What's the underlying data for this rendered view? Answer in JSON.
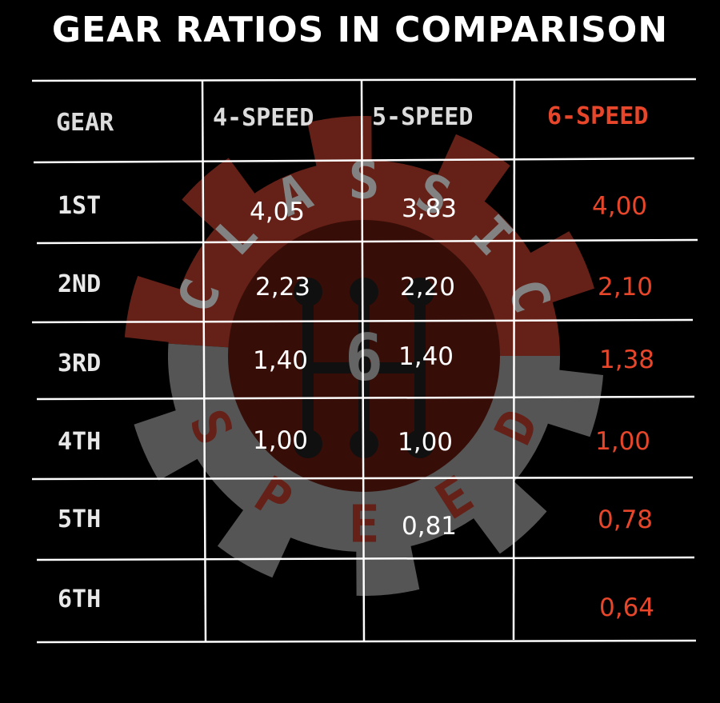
{
  "title": "GEAR RATIOS IN COMPARISON",
  "colors": {
    "background": "#000000",
    "text": "#ffffff",
    "header_text": "#e0e0e0",
    "accent": "#e8462a",
    "gridline": "#ffffff",
    "logo_gear_top": "#6b231a",
    "logo_gear_bottom": "#5a5a5a",
    "logo_circle": "#3a0e08"
  },
  "logo": {
    "text_top": "CLASSIC",
    "text_bottom": "SPEED",
    "center_number": "6",
    "icon": "gear-shift-icon"
  },
  "chart_data": {
    "type": "table",
    "columns": [
      "GEAR",
      "4-SPEED",
      "5-SPEED",
      "6-SPEED"
    ],
    "highlight_column": "6-SPEED",
    "rows": [
      {
        "gear": "1ST",
        "four": "4,05",
        "five": "3,83",
        "six": "4,00"
      },
      {
        "gear": "2ND",
        "four": "2,23",
        "five": "2,20",
        "six": "2,10"
      },
      {
        "gear": "3RD",
        "four": "1,40",
        "five": "1,40",
        "six": "1,38"
      },
      {
        "gear": "4TH",
        "four": "1,00",
        "five": "1,00",
        "six": "1,00"
      },
      {
        "gear": "5TH",
        "four": "",
        "five": "0,81",
        "six": "0,78"
      },
      {
        "gear": "6TH",
        "four": "",
        "five": "",
        "six": "0,64"
      }
    ],
    "series": [
      {
        "name": "4-SPEED",
        "values": [
          4.05,
          2.23,
          1.4,
          1.0,
          null,
          null
        ]
      },
      {
        "name": "5-SPEED",
        "values": [
          3.83,
          2.2,
          1.4,
          1.0,
          0.81,
          null
        ]
      },
      {
        "name": "6-SPEED",
        "values": [
          4.0,
          2.1,
          1.38,
          1.0,
          0.78,
          0.64
        ]
      }
    ]
  }
}
